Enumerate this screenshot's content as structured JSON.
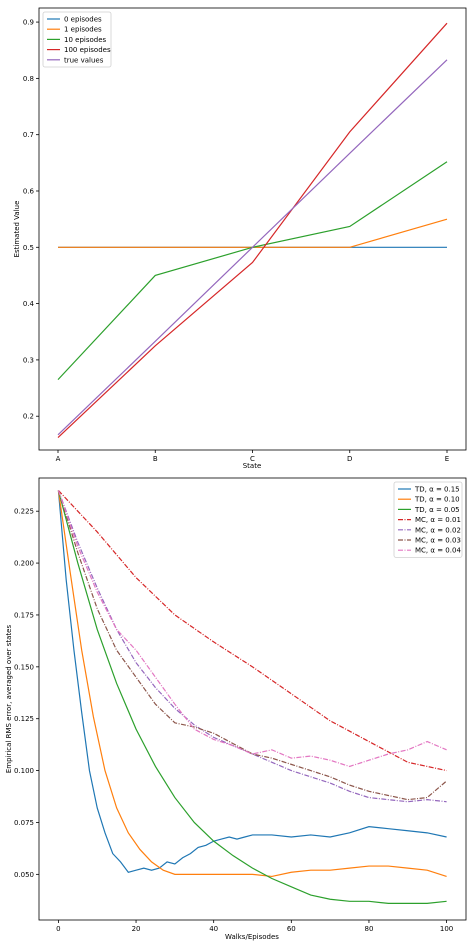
{
  "chart_data": [
    {
      "type": "line",
      "title": "",
      "xlabel": "State",
      "ylabel": "Estimated Value",
      "categories": [
        "A",
        "B",
        "C",
        "D",
        "E"
      ],
      "ylim": [
        0.14,
        0.925
      ],
      "yticks": [
        "0.2",
        "0.3",
        "0.4",
        "0.5",
        "0.6",
        "0.7",
        "0.8",
        "0.9"
      ],
      "grid": false,
      "legend": "top-left",
      "series": [
        {
          "name": "0 episodes",
          "color": "#1f77b4",
          "values": [
            0.5,
            0.5,
            0.5,
            0.5,
            0.5
          ]
        },
        {
          "name": "1 episodes",
          "color": "#ff7f0e",
          "values": [
            0.5,
            0.5,
            0.5,
            0.5,
            0.55
          ]
        },
        {
          "name": "10 episodes",
          "color": "#2ca02c",
          "values": [
            0.265,
            0.45,
            0.5,
            0.537,
            0.652
          ]
        },
        {
          "name": "100 episodes",
          "color": "#d62728",
          "values": [
            0.162,
            0.325,
            0.473,
            0.705,
            0.898
          ]
        },
        {
          "name": "true values",
          "color": "#9467bd",
          "values": [
            0.167,
            0.333,
            0.5,
            0.667,
            0.833
          ]
        }
      ]
    },
    {
      "type": "line",
      "title": "",
      "xlabel": "Walks/Episodes",
      "ylabel": "Empirical RMS error, averaged over states",
      "xlim": [
        -5,
        105
      ],
      "ylim": [
        0.028,
        0.241
      ],
      "xticks": [
        "0",
        "20",
        "40",
        "60",
        "80",
        "100"
      ],
      "yticks": [
        "0.050",
        "0.075",
        "0.100",
        "0.125",
        "0.150",
        "0.175",
        "0.200",
        "0.225"
      ],
      "grid": false,
      "legend": "top-right",
      "series": [
        {
          "name": "TD, α = 0.15",
          "color": "#1f77b4",
          "style": "solid",
          "x": [
            0,
            2,
            4,
            6,
            8,
            10,
            12,
            14,
            16,
            18,
            20,
            22,
            24,
            26,
            28,
            30,
            32,
            34,
            36,
            38,
            40,
            42,
            44,
            46,
            48,
            50,
            55,
            60,
            65,
            70,
            75,
            80,
            85,
            90,
            95,
            100
          ],
          "values": [
            0.235,
            0.192,
            0.158,
            0.128,
            0.1,
            0.082,
            0.07,
            0.06,
            0.056,
            0.051,
            0.052,
            0.053,
            0.052,
            0.053,
            0.056,
            0.055,
            0.058,
            0.06,
            0.063,
            0.064,
            0.066,
            0.067,
            0.068,
            0.067,
            0.068,
            0.069,
            0.069,
            0.068,
            0.069,
            0.068,
            0.07,
            0.073,
            0.072,
            0.071,
            0.07,
            0.068
          ]
        },
        {
          "name": "TD, α = 0.10",
          "color": "#ff7f0e",
          "style": "solid",
          "x": [
            0,
            3,
            6,
            9,
            12,
            15,
            18,
            21,
            24,
            27,
            30,
            35,
            40,
            45,
            50,
            55,
            60,
            65,
            70,
            75,
            80,
            85,
            90,
            95,
            100
          ],
          "values": [
            0.235,
            0.196,
            0.158,
            0.126,
            0.1,
            0.082,
            0.07,
            0.062,
            0.056,
            0.052,
            0.05,
            0.05,
            0.05,
            0.05,
            0.05,
            0.049,
            0.051,
            0.052,
            0.052,
            0.053,
            0.054,
            0.054,
            0.053,
            0.052,
            0.049
          ]
        },
        {
          "name": "TD, α = 0.05",
          "color": "#2ca02c",
          "style": "solid",
          "x": [
            0,
            5,
            10,
            15,
            20,
            25,
            30,
            35,
            40,
            45,
            50,
            55,
            60,
            65,
            70,
            75,
            80,
            85,
            90,
            95,
            100
          ],
          "values": [
            0.235,
            0.2,
            0.168,
            0.142,
            0.12,
            0.102,
            0.087,
            0.075,
            0.066,
            0.059,
            0.053,
            0.048,
            0.044,
            0.04,
            0.038,
            0.037,
            0.037,
            0.036,
            0.036,
            0.036,
            0.037
          ]
        },
        {
          "name": "MC, α = 0.01",
          "color": "#d62728",
          "style": "dashdot",
          "x": [
            0,
            10,
            20,
            30,
            40,
            50,
            60,
            70,
            80,
            90,
            100
          ],
          "values": [
            0.235,
            0.215,
            0.193,
            0.175,
            0.162,
            0.15,
            0.137,
            0.124,
            0.114,
            0.104,
            0.1
          ]
        },
        {
          "name": "MC, α = 0.02",
          "color": "#9467bd",
          "style": "dashdot",
          "x": [
            0,
            5,
            10,
            15,
            20,
            25,
            30,
            35,
            40,
            45,
            50,
            55,
            60,
            65,
            70,
            75,
            80,
            85,
            90,
            95,
            100
          ],
          "values": [
            0.235,
            0.21,
            0.188,
            0.168,
            0.152,
            0.14,
            0.13,
            0.122,
            0.116,
            0.112,
            0.108,
            0.104,
            0.1,
            0.097,
            0.094,
            0.09,
            0.087,
            0.086,
            0.085,
            0.086,
            0.085
          ]
        },
        {
          "name": "MC, α = 0.03",
          "color": "#8c564b",
          "style": "dashdot",
          "x": [
            0,
            5,
            10,
            15,
            20,
            25,
            30,
            35,
            40,
            45,
            50,
            55,
            60,
            65,
            70,
            75,
            80,
            85,
            90,
            95,
            100
          ],
          "values": [
            0.235,
            0.205,
            0.178,
            0.158,
            0.145,
            0.132,
            0.123,
            0.121,
            0.118,
            0.113,
            0.108,
            0.106,
            0.103,
            0.1,
            0.097,
            0.093,
            0.09,
            0.088,
            0.086,
            0.087,
            0.095
          ]
        },
        {
          "name": "MC, α = 0.04",
          "color": "#e377c2",
          "style": "dashdot",
          "x": [
            0,
            5,
            10,
            15,
            20,
            25,
            30,
            35,
            40,
            45,
            50,
            55,
            60,
            65,
            70,
            75,
            80,
            85,
            90,
            95,
            100
          ],
          "values": [
            0.235,
            0.208,
            0.186,
            0.168,
            0.158,
            0.145,
            0.132,
            0.12,
            0.115,
            0.112,
            0.108,
            0.11,
            0.106,
            0.107,
            0.105,
            0.102,
            0.105,
            0.108,
            0.11,
            0.114,
            0.11
          ]
        }
      ]
    }
  ]
}
